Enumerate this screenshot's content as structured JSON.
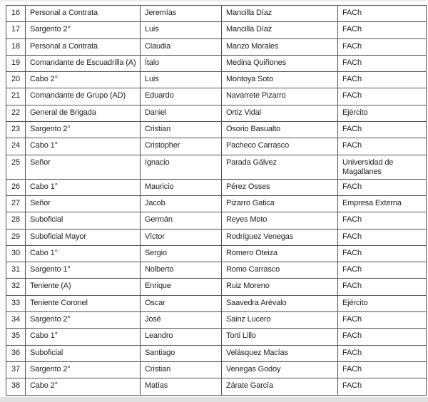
{
  "document": {
    "description": "Scanned personnel roster table, rows 16 to 38",
    "language": "es"
  },
  "colors": {
    "border": "#525252",
    "text": "#222222",
    "cell_background": "#ffffff",
    "page_background": "#fcfcfc",
    "edge_shade": "#e0e0e0"
  },
  "table": {
    "columns": [
      "row-number",
      "rank-title",
      "first-name",
      "last-name",
      "organization"
    ],
    "rows": [
      [
        "16",
        "Personal a Contrata",
        "Jeremías",
        "Mancilla Díaz",
        "FACh"
      ],
      [
        "17",
        "Sargento 2°",
        "Luis",
        "Mancilla Díaz",
        "FACh"
      ],
      [
        "18",
        "Personal a Contrata",
        "Claudia",
        "Manzo Morales",
        "FACh"
      ],
      [
        "19",
        "Comandante de Escuadrilla (A)",
        "Ítalo",
        "Medina Quiñones",
        "FACh"
      ],
      [
        "20",
        "Cabo 2°",
        "Luis",
        "Montoya Soto",
        "FACh"
      ],
      [
        "21",
        "Comandante de Grupo (AD)",
        "Eduardo",
        "Navarrete Pizarro",
        "FACh"
      ],
      [
        "22",
        "General de Brigada",
        "Daniel",
        "Ortiz Vidal",
        "Ejército"
      ],
      [
        "23",
        "Sargento 2°",
        "Cristian",
        "Osorio Basualto",
        "FACh"
      ],
      [
        "24",
        "Cabo 1°",
        "Cristopher",
        "Pacheco Carrasco",
        "FACh"
      ],
      [
        "25",
        "Señor",
        "Ignacio",
        "Parada Gálvez",
        "Universidad de Magallanes"
      ],
      [
        "26",
        "Cabo 1°",
        "Mauricio",
        "Pérez Osses",
        "FACh"
      ],
      [
        "27",
        "Señor",
        "Jacob",
        "Pizarro Gatica",
        "Empresa Externa"
      ],
      [
        "28",
        "Suboficial",
        "Germán",
        "Reyes Moto",
        "FACh"
      ],
      [
        "29",
        "Suboficial Mayor",
        "Víctor",
        "Rodríguez Venegas",
        "FACh"
      ],
      [
        "30",
        "Cabo 1°",
        "Sergio",
        "Romero Oteiza",
        "FACh"
      ],
      [
        "31",
        "Sargento 1°",
        "Nolberto",
        "Romo Carrasco",
        "FACh"
      ],
      [
        "32",
        "Teniente (A)",
        "Enrique",
        "Ruiz Moreno",
        "FACh"
      ],
      [
        "33",
        "Teniente Coronel",
        "Oscar",
        "Saavedra Arévalo",
        "Ejército"
      ],
      [
        "34",
        "Sargento 2°",
        "José",
        "Sainz Lucero",
        "FACh"
      ],
      [
        "35",
        "Cabo 1°",
        "Leandro",
        "Torti Lillo",
        "FACh"
      ],
      [
        "36",
        "Suboficial",
        "Santiago",
        "Velásquez Macías",
        "FACh"
      ],
      [
        "37",
        "Sargento 2°",
        "Cristian",
        "Venegas Godoy",
        "FACh"
      ],
      [
        "38",
        "Cabo 2°",
        "Matías",
        "Zárate García",
        "FACh"
      ]
    ]
  }
}
